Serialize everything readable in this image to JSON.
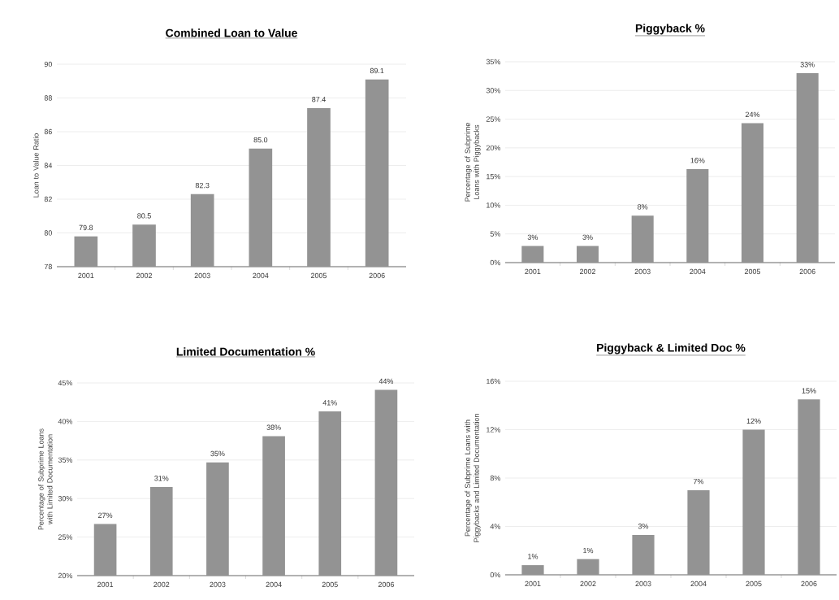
{
  "chart_data": [
    {
      "type": "bar",
      "title": "Combined Loan to Value",
      "ylabel": "Loan to Value Ratio",
      "categories": [
        "2001",
        "2002",
        "2003",
        "2004",
        "2005",
        "2006"
      ],
      "values": [
        79.8,
        80.5,
        82.3,
        85.0,
        87.4,
        89.1
      ],
      "value_labels": [
        "79.8",
        "80.5",
        "82.3",
        "85.0",
        "87.4",
        "89.1"
      ],
      "color": "#939393",
      "ylim": [
        78,
        90
      ],
      "yticks": [
        78,
        80,
        82,
        84,
        86,
        88,
        90
      ],
      "grid": "y"
    },
    {
      "type": "bar",
      "title": "Piggyback %",
      "ylabel": "Percentage of Subprime Loans with Piggybacks",
      "categories": [
        "2001",
        "2002",
        "2003",
        "2004",
        "2005",
        "2006"
      ],
      "values": [
        2.9,
        2.9,
        8.2,
        16.3,
        24.3,
        33.0
      ],
      "value_labels": [
        "3%",
        "3%",
        "8%",
        "16%",
        "24%",
        "33%"
      ],
      "color": "#939393",
      "ylim": [
        0,
        35
      ],
      "yticks": [
        {
          "value": 0,
          "label": "0%"
        },
        {
          "value": 5,
          "label": "5%"
        },
        {
          "value": 10,
          "label": "10%"
        },
        {
          "value": 15,
          "label": "15%"
        },
        {
          "value": 20,
          "label": "20%"
        },
        {
          "value": 25,
          "label": "25%"
        },
        {
          "value": 30,
          "label": "30%"
        },
        {
          "value": 35,
          "label": "35%"
        }
      ],
      "grid": "y"
    },
    {
      "type": "bar",
      "title": "Limited Documentation %",
      "ylabel": "Percentage of Subprime Loans with Limited Documentation",
      "categories": [
        "2001",
        "2002",
        "2003",
        "2004",
        "2005",
        "2006"
      ],
      "values": [
        26.7,
        31.5,
        34.7,
        38.1,
        41.3,
        44.1
      ],
      "value_labels": [
        "27%",
        "31%",
        "35%",
        "38%",
        "41%",
        "44%"
      ],
      "color": "#939393",
      "ylim": [
        20,
        45
      ],
      "yticks": [
        {
          "value": 20,
          "label": "20%"
        },
        {
          "value": 25,
          "label": "25%"
        },
        {
          "value": 30,
          "label": "30%"
        },
        {
          "value": 35,
          "label": "35%"
        },
        {
          "value": 40,
          "label": "40%"
        },
        {
          "value": 45,
          "label": "45%"
        }
      ],
      "grid": "y"
    },
    {
      "type": "bar",
      "title": "Piggyback & Limited Doc %",
      "ylabel": "Percentage of Subprime Loans with Piggybacks and Limited Documentation",
      "categories": [
        "2001",
        "2002",
        "2003",
        "2004",
        "2005",
        "2006"
      ],
      "values": [
        0.8,
        1.3,
        3.3,
        7.0,
        12.0,
        14.5
      ],
      "value_labels": [
        "1%",
        "1%",
        "3%",
        "7%",
        "12%",
        "15%"
      ],
      "color": "#939393",
      "ylim": [
        0,
        16
      ],
      "yticks": [
        {
          "value": 0,
          "label": "0%"
        },
        {
          "value": 4,
          "label": "4%"
        },
        {
          "value": 8,
          "label": "8%"
        },
        {
          "value": 12,
          "label": "12%"
        },
        {
          "value": 16,
          "label": "16%"
        }
      ],
      "grid": "y"
    }
  ]
}
